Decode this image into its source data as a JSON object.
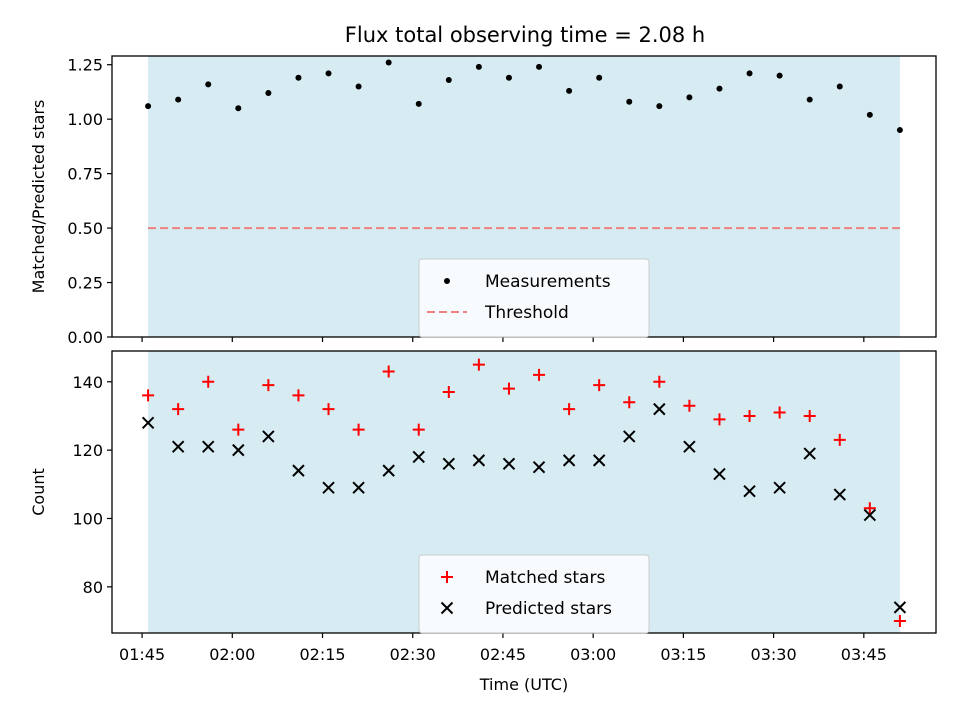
{
  "title": "Flux total observing time = 2.08 h",
  "chart_data": [
    {
      "type": "scatter",
      "ylabel": "Matched/Predicted stars",
      "ylim": [
        0,
        1.29
      ],
      "yticks": [
        "0.00",
        "0.25",
        "0.50",
        "0.75",
        "1.00",
        "1.25"
      ],
      "ytick_values": [
        0,
        0.25,
        0.5,
        0.75,
        1.0,
        1.25
      ],
      "grid": false,
      "legend_position": "bottom-center",
      "shaded_span": [
        "01:46",
        "03:51"
      ],
      "threshold": {
        "name": "Threshold",
        "value": 0.5,
        "color": "#f08080",
        "style": "dashed"
      },
      "series": [
        {
          "name": "Measurements",
          "marker": "dot",
          "color": "#000000",
          "x": [
            "01:46",
            "01:51",
            "01:56",
            "02:01",
            "02:06",
            "02:11",
            "02:16",
            "02:21",
            "02:26",
            "02:31",
            "02:36",
            "02:41",
            "02:46",
            "02:51",
            "02:56",
            "03:01",
            "03:06",
            "03:11",
            "03:16",
            "03:21",
            "03:26",
            "03:31",
            "03:36",
            "03:41",
            "03:46",
            "03:51"
          ],
          "values": [
            1.06,
            1.09,
            1.16,
            1.05,
            1.12,
            1.19,
            1.21,
            1.15,
            1.26,
            1.07,
            1.18,
            1.24,
            1.19,
            1.24,
            1.13,
            1.19,
            1.08,
            1.06,
            1.1,
            1.14,
            1.21,
            1.2,
            1.09,
            1.15,
            1.02,
            0.95
          ]
        }
      ]
    },
    {
      "type": "scatter",
      "ylabel": "Count",
      "xlabel": "Time (UTC)",
      "ylim": [
        66.5,
        149
      ],
      "yticks": [
        "80",
        "100",
        "120",
        "140"
      ],
      "ytick_values": [
        80,
        100,
        120,
        140
      ],
      "xticks": [
        "01:45",
        "02:00",
        "02:15",
        "02:30",
        "02:45",
        "03:00",
        "03:15",
        "03:30",
        "03:45"
      ],
      "xlim": [
        "01:40",
        "03:57"
      ],
      "grid": false,
      "legend_position": "bottom-center",
      "shaded_span": [
        "01:46",
        "03:51"
      ],
      "series": [
        {
          "name": "Matched stars",
          "marker": "plus",
          "color": "#ff0000",
          "x": [
            "01:46",
            "01:51",
            "01:56",
            "02:01",
            "02:06",
            "02:11",
            "02:16",
            "02:21",
            "02:26",
            "02:31",
            "02:36",
            "02:41",
            "02:46",
            "02:51",
            "02:56",
            "03:01",
            "03:06",
            "03:11",
            "03:16",
            "03:21",
            "03:26",
            "03:31",
            "03:36",
            "03:41",
            "03:46",
            "03:51"
          ],
          "values": [
            136,
            132,
            140,
            126,
            139,
            136,
            132,
            126,
            143,
            126,
            137,
            145,
            138,
            142,
            132,
            139,
            134,
            140,
            133,
            129,
            130,
            131,
            130,
            123,
            103,
            70
          ]
        },
        {
          "name": "Predicted stars",
          "marker": "x",
          "color": "#000000",
          "x": [
            "01:46",
            "01:51",
            "01:56",
            "02:01",
            "02:06",
            "02:11",
            "02:16",
            "02:21",
            "02:26",
            "02:31",
            "02:36",
            "02:41",
            "02:46",
            "02:51",
            "02:56",
            "03:01",
            "03:06",
            "03:11",
            "03:16",
            "03:21",
            "03:26",
            "03:31",
            "03:36",
            "03:41",
            "03:46",
            "03:51"
          ],
          "values": [
            128,
            121,
            121,
            120,
            124,
            114,
            109,
            109,
            114,
            118,
            116,
            117,
            116,
            115,
            117,
            117,
            124,
            132,
            121,
            113,
            108,
            109,
            119,
            107,
            101,
            74
          ]
        }
      ]
    }
  ],
  "colors": {
    "span": "#add8e6",
    "axes": "#000000",
    "background": "#ffffff"
  }
}
